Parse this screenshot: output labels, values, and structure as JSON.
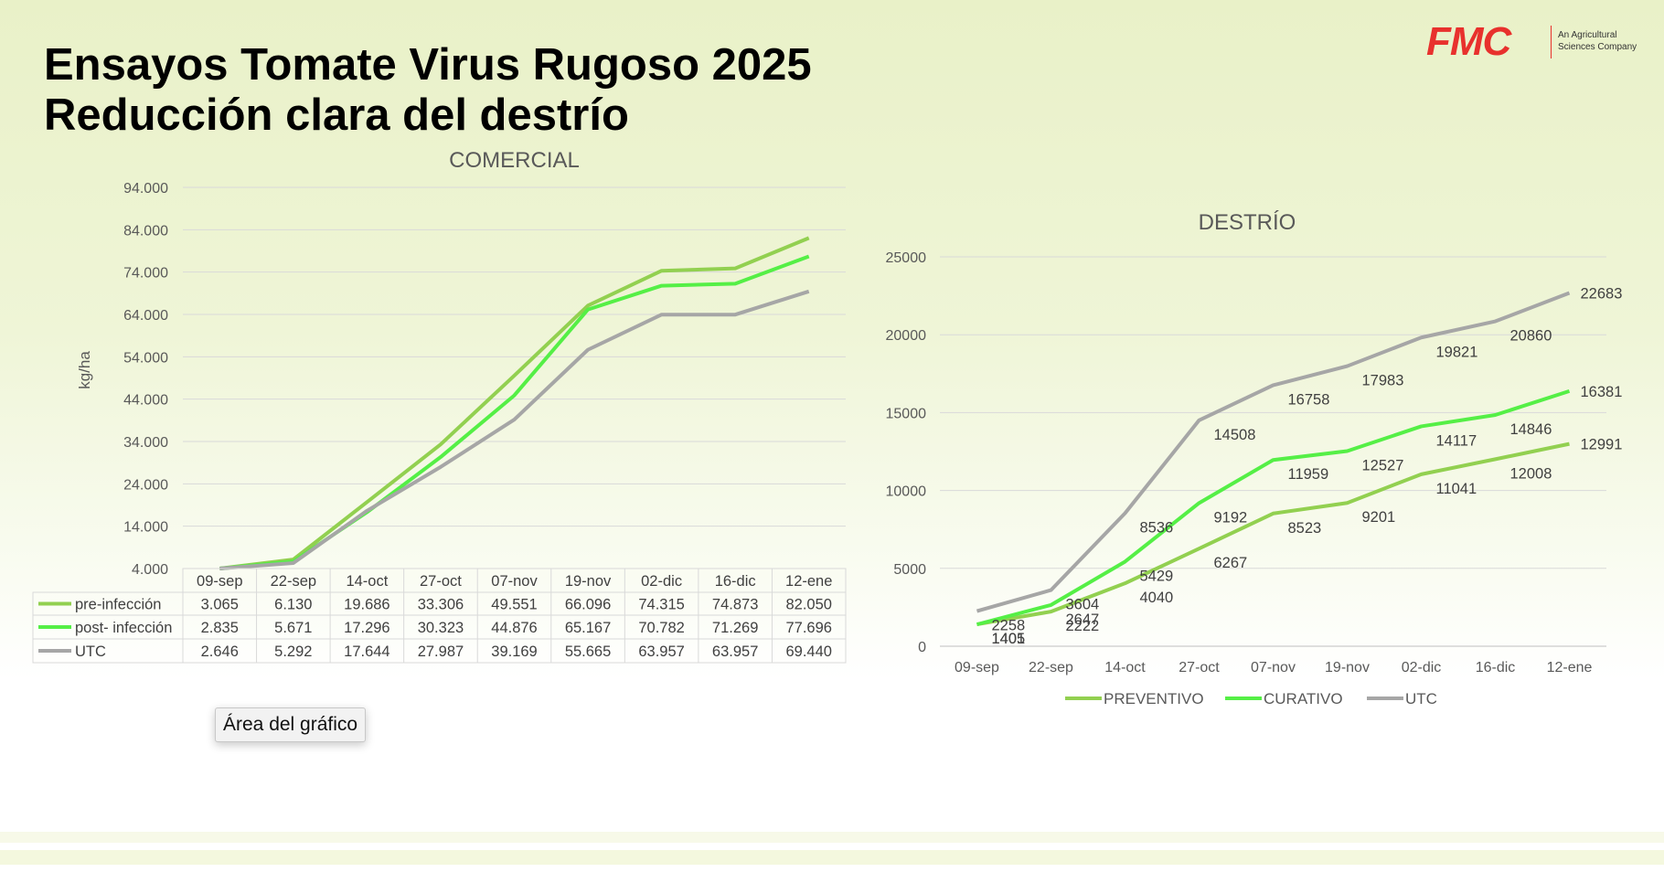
{
  "slide": {
    "title_line1": "Ensayos Tomate Virus Rugoso 2025",
    "title_line2": "Reducción clara del destrío",
    "logo_text": "FMC",
    "logo_tagline_line1": "An Agricultural",
    "logo_tagline_line2": "Sciences Company",
    "tooltip": "Área del gráfico"
  },
  "colors": {
    "preventive": "#92d050",
    "curative": "#55ef46",
    "utc": "#a6a6a6",
    "logo": "#e8312d"
  },
  "chart_data": [
    {
      "type": "line",
      "title": "COMERCIAL",
      "ylabel": "kg/ha",
      "xlabel": "",
      "ylim": [
        4000,
        94000
      ],
      "yticks": [
        "94.000",
        "84.000",
        "74.000",
        "64.000",
        "54.000",
        "44.000",
        "34.000",
        "24.000",
        "14.000",
        "4.000"
      ],
      "categories": [
        "09-sep",
        "22-sep",
        "14-oct",
        "27-oct",
        "07-nov",
        "19-nov",
        "02-dic",
        "16-dic",
        "12-ene"
      ],
      "grid": true,
      "legend": "data-table",
      "series": [
        {
          "name": "pre-infección",
          "values": [
            3065,
            6130,
            19686,
            33306,
            49551,
            66096,
            74315,
            74873,
            82050
          ],
          "labels": [
            "3.065",
            "6.130",
            "19.686",
            "33.306",
            "49.551",
            "66.096",
            "74.315",
            "74.873",
            "82.050"
          ]
        },
        {
          "name": "post- infección",
          "values": [
            2835,
            5671,
            17296,
            30323,
            44876,
            65167,
            70782,
            71269,
            77696
          ],
          "labels": [
            "2.835",
            "5.671",
            "17.296",
            "30.323",
            "44.876",
            "65.167",
            "70.782",
            "71.269",
            "77.696"
          ]
        },
        {
          "name": "UTC",
          "values": [
            2646,
            5292,
            17644,
            27987,
            39169,
            55665,
            63957,
            63957,
            69440
          ],
          "labels": [
            "2.646",
            "5.292",
            "17.644",
            "27.987",
            "39.169",
            "55.665",
            "63.957",
            "63.957",
            "69.440"
          ]
        }
      ]
    },
    {
      "type": "line",
      "title": "DESTRÍO",
      "xlabel": "",
      "ylabel": "",
      "ylim": [
        0,
        25000
      ],
      "yticks": [
        "25000",
        "20000",
        "15000",
        "10000",
        "5000",
        "0"
      ],
      "categories": [
        "09-sep",
        "22-sep",
        "14-oct",
        "27-oct",
        "07-nov",
        "19-nov",
        "02-dic",
        "16-dic",
        "12-ene"
      ],
      "grid": true,
      "legend": "bottom",
      "series": [
        {
          "name": "PREVENTIVO",
          "values": [
            1405,
            2222,
            4040,
            6267,
            8523,
            9201,
            11041,
            12008,
            12991
          ]
        },
        {
          "name": "CURATIVO",
          "values": [
            1401,
            2647,
            5429,
            9192,
            11959,
            12527,
            14117,
            14846,
            16381
          ]
        },
        {
          "name": "UTC",
          "values": [
            2258,
            3604,
            8536,
            14508,
            16758,
            17983,
            19821,
            20860,
            22683
          ]
        }
      ]
    }
  ]
}
